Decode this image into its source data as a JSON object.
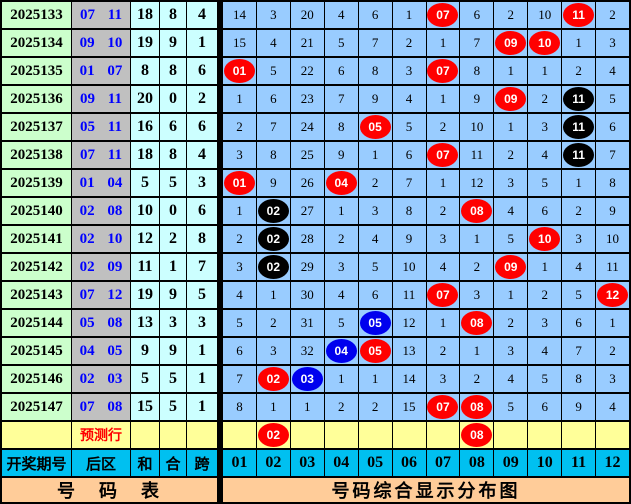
{
  "chart_data": {
    "type": "table",
    "title": "号码综合显示分布图",
    "header": {
      "period": "开奖期号",
      "back": "后区",
      "sum": "和",
      "tail": "合",
      "span": "跨"
    },
    "number_columns": [
      "01",
      "02",
      "03",
      "04",
      "05",
      "06",
      "07",
      "08",
      "09",
      "10",
      "11",
      "12"
    ],
    "rows": [
      {
        "period": "2025133",
        "back": "07 11",
        "sum": "18",
        "tail": "8",
        "span": "4",
        "cells": [
          "14",
          "3",
          "20",
          "4",
          "6",
          "1",
          {
            "v": "07",
            "c": "red"
          },
          "6",
          "2",
          "10",
          {
            "v": "11",
            "c": "red"
          },
          "2"
        ]
      },
      {
        "period": "2025134",
        "back": "09 10",
        "sum": "19",
        "tail": "9",
        "span": "1",
        "cells": [
          "15",
          "4",
          "21",
          "5",
          "7",
          "2",
          "1",
          "7",
          {
            "v": "09",
            "c": "red"
          },
          {
            "v": "10",
            "c": "red"
          },
          "1",
          "3"
        ]
      },
      {
        "period": "2025135",
        "back": "01 07",
        "sum": "8",
        "tail": "8",
        "span": "6",
        "cells": [
          {
            "v": "01",
            "c": "red"
          },
          "5",
          "22",
          "6",
          "8",
          "3",
          {
            "v": "07",
            "c": "red"
          },
          "8",
          "1",
          "1",
          "2",
          "4"
        ]
      },
      {
        "period": "2025136",
        "back": "09 11",
        "sum": "20",
        "tail": "0",
        "span": "2",
        "cells": [
          "1",
          "6",
          "23",
          "7",
          "9",
          "4",
          "1",
          "9",
          {
            "v": "09",
            "c": "red"
          },
          "2",
          {
            "v": "11",
            "c": "black"
          },
          "5"
        ]
      },
      {
        "period": "2025137",
        "back": "05 11",
        "sum": "16",
        "tail": "6",
        "span": "6",
        "cells": [
          "2",
          "7",
          "24",
          "8",
          {
            "v": "05",
            "c": "red"
          },
          "5",
          "2",
          "10",
          "1",
          "3",
          {
            "v": "11",
            "c": "black"
          },
          "6"
        ]
      },
      {
        "period": "2025138",
        "back": "07 11",
        "sum": "18",
        "tail": "8",
        "span": "4",
        "cells": [
          "3",
          "8",
          "25",
          "9",
          "1",
          "6",
          {
            "v": "07",
            "c": "red"
          },
          "11",
          "2",
          "4",
          {
            "v": "11",
            "c": "black"
          },
          "7"
        ]
      },
      {
        "period": "2025139",
        "back": "01 04",
        "sum": "5",
        "tail": "5",
        "span": "3",
        "cells": [
          {
            "v": "01",
            "c": "red"
          },
          "9",
          "26",
          {
            "v": "04",
            "c": "red"
          },
          "2",
          "7",
          "1",
          "12",
          "3",
          "5",
          "1",
          "8"
        ]
      },
      {
        "period": "2025140",
        "back": "02 08",
        "sum": "10",
        "tail": "0",
        "span": "6",
        "cells": [
          "1",
          {
            "v": "02",
            "c": "black"
          },
          "27",
          "1",
          "3",
          "8",
          "2",
          {
            "v": "08",
            "c": "red"
          },
          "4",
          "6",
          "2",
          "9"
        ]
      },
      {
        "period": "2025141",
        "back": "02 10",
        "sum": "12",
        "tail": "2",
        "span": "8",
        "cells": [
          "2",
          {
            "v": "02",
            "c": "black"
          },
          "28",
          "2",
          "4",
          "9",
          "3",
          "1",
          "5",
          {
            "v": "10",
            "c": "red"
          },
          "3",
          "10"
        ]
      },
      {
        "period": "2025142",
        "back": "02 09",
        "sum": "11",
        "tail": "1",
        "span": "7",
        "cells": [
          "3",
          {
            "v": "02",
            "c": "black"
          },
          "29",
          "3",
          "5",
          "10",
          "4",
          "2",
          {
            "v": "09",
            "c": "red"
          },
          "1",
          "4",
          "11"
        ]
      },
      {
        "period": "2025143",
        "back": "07 12",
        "sum": "19",
        "tail": "9",
        "span": "5",
        "cells": [
          "4",
          "1",
          "30",
          "4",
          "6",
          "11",
          {
            "v": "07",
            "c": "red"
          },
          "3",
          "1",
          "2",
          "5",
          {
            "v": "12",
            "c": "red"
          }
        ]
      },
      {
        "period": "2025144",
        "back": "05 08",
        "sum": "13",
        "tail": "3",
        "span": "3",
        "cells": [
          "5",
          "2",
          "31",
          "5",
          {
            "v": "05",
            "c": "blue"
          },
          "12",
          "1",
          {
            "v": "08",
            "c": "red"
          },
          "2",
          "3",
          "6",
          "1"
        ]
      },
      {
        "period": "2025145",
        "back": "04 05",
        "sum": "9",
        "tail": "9",
        "span": "1",
        "cells": [
          "6",
          "3",
          "32",
          {
            "v": "04",
            "c": "blue"
          },
          {
            "v": "05",
            "c": "red"
          },
          "13",
          "2",
          "1",
          "3",
          "4",
          "7",
          "2"
        ]
      },
      {
        "period": "2025146",
        "back": "02 03",
        "sum": "5",
        "tail": "5",
        "span": "1",
        "cells": [
          "7",
          {
            "v": "02",
            "c": "red"
          },
          {
            "v": "03",
            "c": "blue"
          },
          "1",
          "1",
          "14",
          "3",
          "2",
          "4",
          "5",
          "8",
          "3"
        ]
      },
      {
        "period": "2025147",
        "back": "07 08",
        "sum": "15",
        "tail": "5",
        "span": "1",
        "cells": [
          "8",
          "1",
          "1",
          "2",
          "2",
          "15",
          {
            "v": "07",
            "c": "red"
          },
          {
            "v": "08",
            "c": "red"
          },
          "5",
          "6",
          "9",
          "4"
        ]
      }
    ],
    "prediction": {
      "label": "预测行",
      "cells": [
        "",
        {
          "v": "02",
          "c": "red"
        },
        "",
        "",
        "",
        "",
        "",
        {
          "v": "08",
          "c": "red"
        },
        "",
        "",
        "",
        ""
      ]
    },
    "footer": {
      "left": "号　码　表",
      "right": "号码综合显示分布图"
    },
    "colors": {
      "grid_cell_bg": "#99ccff",
      "period_cell_bg": "#ccffcc",
      "back_cell_bg": "#c0c0c0",
      "stat_cell_bg": "#ccffff",
      "prediction_row_bg": "#ffff99",
      "header_row_bg": "#00c0f0",
      "footer_bg": "#ffcc99",
      "ball_red": "#ff0000",
      "ball_black": "#000000",
      "ball_blue": "#0000ee",
      "back_text": "#0000ff",
      "prediction_text": "#ff0000"
    }
  }
}
